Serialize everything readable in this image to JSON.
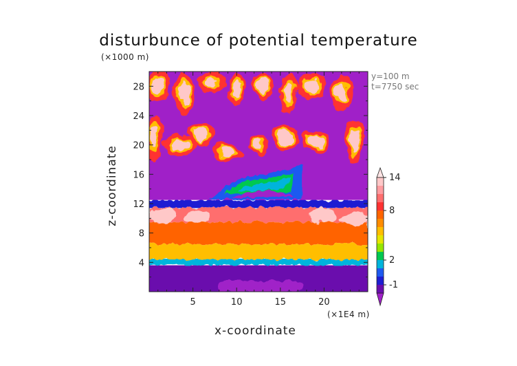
{
  "chart_data": {
    "type": "heatmap",
    "title": "disturbunce of potential temperature",
    "xlabel": "x-coordinate",
    "ylabel": "z-coordinate",
    "x_scale_note": "(×1E4 m)",
    "y_scale_note": "(×1000 m)",
    "annotations": [
      "y=100 m",
      "t=7750 sec"
    ],
    "xlim": [
      0,
      25
    ],
    "ylim": [
      0,
      30
    ],
    "x_ticks": [
      5,
      10,
      15,
      20
    ],
    "y_ticks": [
      4,
      8,
      12,
      16,
      20,
      24,
      28
    ],
    "colorbar": {
      "tick_labels": [
        "-1",
        "2",
        "8",
        "14"
      ],
      "tick_values": [
        -1,
        2,
        8,
        14
      ],
      "colors": [
        "#a020c8",
        "#6a0dad",
        "#1e1ed2",
        "#1e5af0",
        "#00b4dc",
        "#00c850",
        "#96e600",
        "#e6e600",
        "#ffbe00",
        "#ff8c00",
        "#ff6400",
        "#ff3232",
        "#ff6e6e",
        "#ff9ca0",
        "#ffc8c8",
        "#ffe4e4"
      ],
      "levels": [
        -3,
        -1,
        0,
        1,
        2,
        3,
        4,
        5,
        6,
        7,
        8,
        10,
        11,
        12,
        14,
        16
      ]
    },
    "field_regions": [
      {
        "x": [
          0,
          25
        ],
        "z": [
          0,
          3.6
        ],
        "value": -1,
        "description": "lower blue layer"
      },
      {
        "x": [
          8,
          17.5
        ],
        "z": [
          0,
          1.5
        ],
        "value": -3,
        "description": "central surface minimum"
      },
      {
        "x": [
          0,
          25
        ],
        "z": [
          3.6,
          4.4
        ],
        "value": 2
      },
      {
        "x": [
          0,
          25
        ],
        "z": [
          4.4,
          6.5
        ],
        "value": 6
      },
      {
        "x": [
          0,
          25
        ],
        "z": [
          6.5,
          9.5
        ],
        "value": 8
      },
      {
        "x": [
          0,
          25
        ],
        "z": [
          9.5,
          11.5
        ],
        "value": 11
      },
      {
        "x": [
          0,
          25
        ],
        "z": [
          11.5,
          12.5
        ],
        "value": 0
      },
      {
        "x": [
          0,
          25
        ],
        "z": [
          12.5,
          30
        ],
        "value": -3,
        "description": "upper magenta background"
      },
      {
        "x": [
          7,
          17.5
        ],
        "z": [
          12.5,
          17.5
        ],
        "value": 2,
        "description": "arch feature"
      },
      {
        "x": [
          0,
          25
        ],
        "z": [
          17,
          30
        ],
        "value": 14,
        "description": "scattered upper-level warm patches"
      }
    ]
  }
}
